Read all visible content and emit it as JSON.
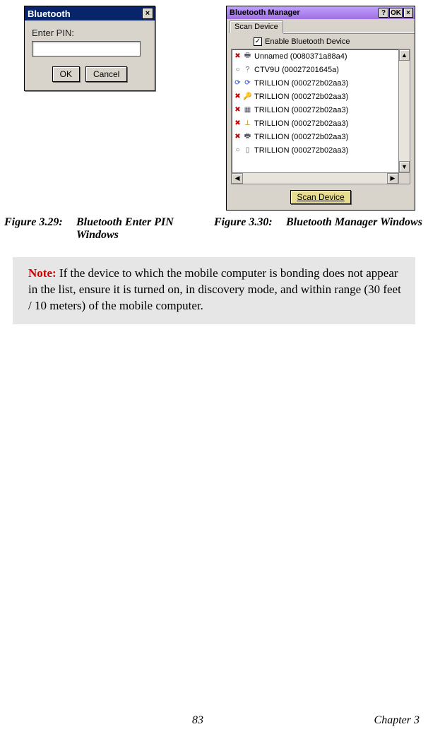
{
  "pin_dialog": {
    "title": "Bluetooth",
    "label": "Enter PIN:",
    "value": "",
    "ok": "OK",
    "cancel": "Cancel",
    "close": "×"
  },
  "bt_manager": {
    "title": "Bluetooth Manager",
    "help": "?",
    "ok": "OK",
    "close": "×",
    "tab": "Scan Device",
    "enable_label": "Enable Bluetooth Device",
    "enable_checked": "✓",
    "devices": [
      {
        "i1": "✖",
        "c1": "#cc0000",
        "i2": "🖶",
        "c2": "#556",
        "name": "Unnamed (0080371a88a4)"
      },
      {
        "i1": "○",
        "c1": "#556",
        "i2": "?",
        "c2": "#556",
        "name": "CTV9U (00027201645a)"
      },
      {
        "i1": "⟳",
        "c1": "#2040cc",
        "i2": "⟳",
        "c2": "#2040cc",
        "name": "TRILLION (000272b02aa3)"
      },
      {
        "i1": "✖",
        "c1": "#cc0000",
        "i2": "🔑",
        "c2": "#aa3333",
        "name": "TRILLION (000272b02aa3)"
      },
      {
        "i1": "✖",
        "c1": "#cc0000",
        "i2": "▦",
        "c2": "#556",
        "name": "TRILLION (000272b02aa3)"
      },
      {
        "i1": "✖",
        "c1": "#cc0000",
        "i2": "⊥",
        "c2": "#aa8800",
        "name": "TRILLION (000272b02aa3)"
      },
      {
        "i1": "✖",
        "c1": "#cc0000",
        "i2": "🖶",
        "c2": "#556",
        "name": "TRILLION (000272b02aa3)"
      },
      {
        "i1": "○",
        "c1": "#556",
        "i2": "▯",
        "c2": "#556",
        "name": "TRILLION (000272b02aa3)"
      }
    ],
    "scan_btn": "Scan Device",
    "arrows": {
      "up": "▲",
      "down": "▼",
      "left": "◀",
      "right": "▶"
    }
  },
  "captions": {
    "left_label": "Figure 3.29:",
    "left_text": "Bluetooth Enter PIN Windows",
    "right_label": "Figure 3.30:",
    "right_text": "Bluetooth Manager Windows"
  },
  "note": {
    "label": "Note:",
    "body": " If the device to which the mobile computer is bonding does not appear in the list, ensure it is turned on, in discovery mode, and within range (30 feet / 10 meters) of the mobile computer."
  },
  "footer": {
    "page": "83",
    "chapter": "Chapter 3"
  }
}
